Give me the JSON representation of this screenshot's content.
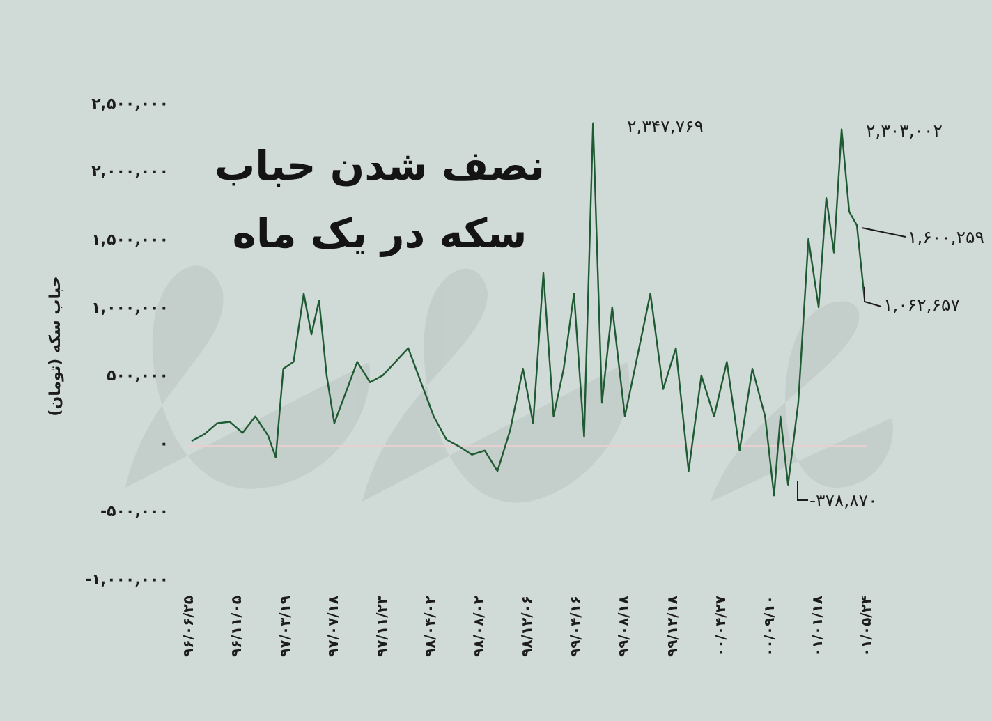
{
  "chart_data": {
    "type": "line",
    "title": [
      "نصف شدن حباب",
      "سکه در یک ماه"
    ],
    "ylabel": "حباب سکه (تومان)",
    "xlabel": "",
    "ylim": [
      -1000000,
      2500000
    ],
    "yticks": [
      2500000,
      2000000,
      1500000,
      1000000,
      500000,
      0,
      -500000,
      -1000000
    ],
    "ytick_labels": [
      "۲,۵۰۰,۰۰۰",
      "۲,۰۰۰,۰۰۰",
      "۱,۵۰۰,۰۰۰",
      "۱,۰۰۰,۰۰۰",
      "۵۰۰,۰۰۰",
      "۰",
      "-۵۰۰,۰۰۰",
      "-۱,۰۰۰,۰۰۰"
    ],
    "xtick_labels": [
      "۹۶/۰۶/۲۵",
      "۹۶/۱۱/۰۵",
      "۹۷/۰۳/۱۹",
      "۹۷/۰۷/۱۸",
      "۹۷/۱۱/۲۳",
      "۹۸/۰۴/۰۲",
      "۹۸/۰۸/۰۲",
      "۹۸/۱۲/۰۶",
      "۹۹/۰۴/۱۶",
      "۹۹/۰۸/۱۸",
      "۹۹/۱۲/۱۸",
      "۰۰/۰۴/۲۷",
      "۰۰/۰۹/۱۰",
      "۰۱/۰۱/۱۸",
      "۰۱/۰۵/۲۴"
    ],
    "grid": false,
    "legend": "none",
    "series": [
      {
        "color": "#1e5a32",
        "values": [
          [
            0,
            20000
          ],
          [
            0.5,
            70000
          ],
          [
            1,
            150000
          ],
          [
            1.5,
            160000
          ],
          [
            2,
            80000
          ],
          [
            2.5,
            200000
          ],
          [
            3,
            60000
          ],
          [
            3.3,
            -100000
          ],
          [
            3.6,
            550000
          ],
          [
            4,
            600000
          ],
          [
            4.4,
            1100000
          ],
          [
            4.7,
            800000
          ],
          [
            5,
            1050000
          ],
          [
            5.3,
            500000
          ],
          [
            5.6,
            150000
          ],
          [
            6,
            350000
          ],
          [
            6.5,
            600000
          ],
          [
            7,
            450000
          ],
          [
            7.5,
            500000
          ],
          [
            8,
            600000
          ],
          [
            8.5,
            700000
          ],
          [
            9,
            450000
          ],
          [
            9.5,
            200000
          ],
          [
            10,
            30000
          ],
          [
            10.5,
            -20000
          ],
          [
            11,
            -80000
          ],
          [
            11.5,
            -50000
          ],
          [
            12,
            -200000
          ],
          [
            12.5,
            100000
          ],
          [
            13,
            550000
          ],
          [
            13.4,
            150000
          ],
          [
            13.8,
            1250000
          ],
          [
            14.2,
            200000
          ],
          [
            14.6,
            550000
          ],
          [
            15,
            1100000
          ],
          [
            15.4,
            50000
          ],
          [
            15.75,
            2347769
          ],
          [
            16.1,
            300000
          ],
          [
            16.5,
            1000000
          ],
          [
            17,
            200000
          ],
          [
            17.5,
            650000
          ],
          [
            18,
            1100000
          ],
          [
            18.5,
            400000
          ],
          [
            19,
            700000
          ],
          [
            19.5,
            -200000
          ],
          [
            20,
            500000
          ],
          [
            20.5,
            200000
          ],
          [
            21,
            600000
          ],
          [
            21.5,
            -50000
          ],
          [
            22,
            550000
          ],
          [
            22.5,
            200000
          ],
          [
            22.85,
            -378870
          ],
          [
            23.1,
            200000
          ],
          [
            23.4,
            -300000
          ],
          [
            23.8,
            300000
          ],
          [
            24.2,
            1500000
          ],
          [
            24.6,
            1000000
          ],
          [
            24.9,
            1800000
          ],
          [
            25.2,
            1400000
          ],
          [
            25.5,
            2303002
          ],
          [
            25.8,
            1700000
          ],
          [
            26.1,
            1600259
          ],
          [
            26.4,
            1062657
          ]
        ]
      }
    ],
    "annotations": [
      {
        "text": "۲,۳۴۷,۷۶۹",
        "value": 2347769
      },
      {
        "text": "۲,۳۰۳,۰۰۲",
        "value": 2303002
      },
      {
        "text": "۱,۶۰۰,۲۵۹",
        "value": 1600259
      },
      {
        "text": "۱,۰۶۲,۶۵۷",
        "value": 1062657
      },
      {
        "text": "-۳۷۸,۸۷۰",
        "value": -378870
      }
    ]
  }
}
